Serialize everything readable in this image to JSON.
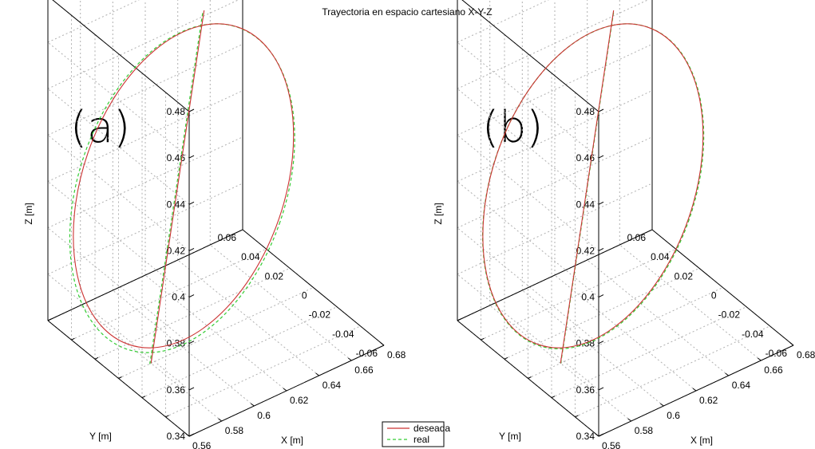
{
  "figure": {
    "title": "Trayectoria en espacio cartesiano X-Y-Z",
    "legend": {
      "items": [
        {
          "label": "deseada",
          "color": "#cc3333",
          "style": "solid"
        },
        {
          "label": "real",
          "color": "#33cc33",
          "style": "dashed"
        }
      ]
    }
  },
  "chart_data": [
    {
      "type": "line",
      "panel_label": "(a)",
      "xlabel": "X [m]",
      "ylabel": "Y [m]",
      "zlabel": "Z [m]",
      "xlim": [
        0.56,
        0.68
      ],
      "ylim": [
        -0.06,
        0.06
      ],
      "zlim": [
        0.34,
        0.48
      ],
      "xticks": [
        "0.56",
        "0.58",
        "0.6",
        "0.62",
        "0.64",
        "0.66",
        "0.68"
      ],
      "yticks": [
        "-0.06",
        "-0.04",
        "-0.02",
        "0",
        "0.02",
        "0.04",
        "0.06"
      ],
      "zticks": [
        "0.34",
        "0.36",
        "0.38",
        "0.4",
        "0.42",
        "0.44",
        "0.46",
        "0.48"
      ],
      "grid": true,
      "series": [
        {
          "name": "deseada",
          "segment_start": {
            "x": 0.58,
            "y": 0.0,
            "z": 0.34
          },
          "segment_end": {
            "x": 0.62,
            "y": 0.01,
            "z": 0.475
          },
          "circle_center": {
            "x": 0.6,
            "y": 0.0,
            "z": 0.41
          },
          "circle_radius_z": 0.067
        },
        {
          "name": "real",
          "tracking_error": "visible"
        }
      ]
    },
    {
      "type": "line",
      "panel_label": "(b)",
      "xlabel": "X [m]",
      "ylabel": "Y [m]",
      "zlabel": "Z [m]",
      "xlim": [
        0.56,
        0.68
      ],
      "ylim": [
        -0.06,
        0.06
      ],
      "zlim": [
        0.34,
        0.48
      ],
      "xticks": [
        "0.56",
        "0.58",
        "0.6",
        "0.62",
        "0.64",
        "0.66",
        "0.68"
      ],
      "yticks": [
        "-0.06",
        "-0.04",
        "-0.02",
        "0",
        "0.02",
        "0.04",
        "0.06"
      ],
      "zticks": [
        "0.34",
        "0.36",
        "0.38",
        "0.4",
        "0.42",
        "0.44",
        "0.46",
        "0.48"
      ],
      "grid": true,
      "series": [
        {
          "name": "deseada",
          "segment_start": {
            "x": 0.58,
            "y": 0.0,
            "z": 0.34
          },
          "segment_end": {
            "x": 0.62,
            "y": 0.01,
            "z": 0.475
          },
          "circle_center": {
            "x": 0.6,
            "y": 0.0,
            "z": 0.41
          },
          "circle_radius_z": 0.067
        },
        {
          "name": "real",
          "tracking_error": "small"
        }
      ]
    }
  ]
}
